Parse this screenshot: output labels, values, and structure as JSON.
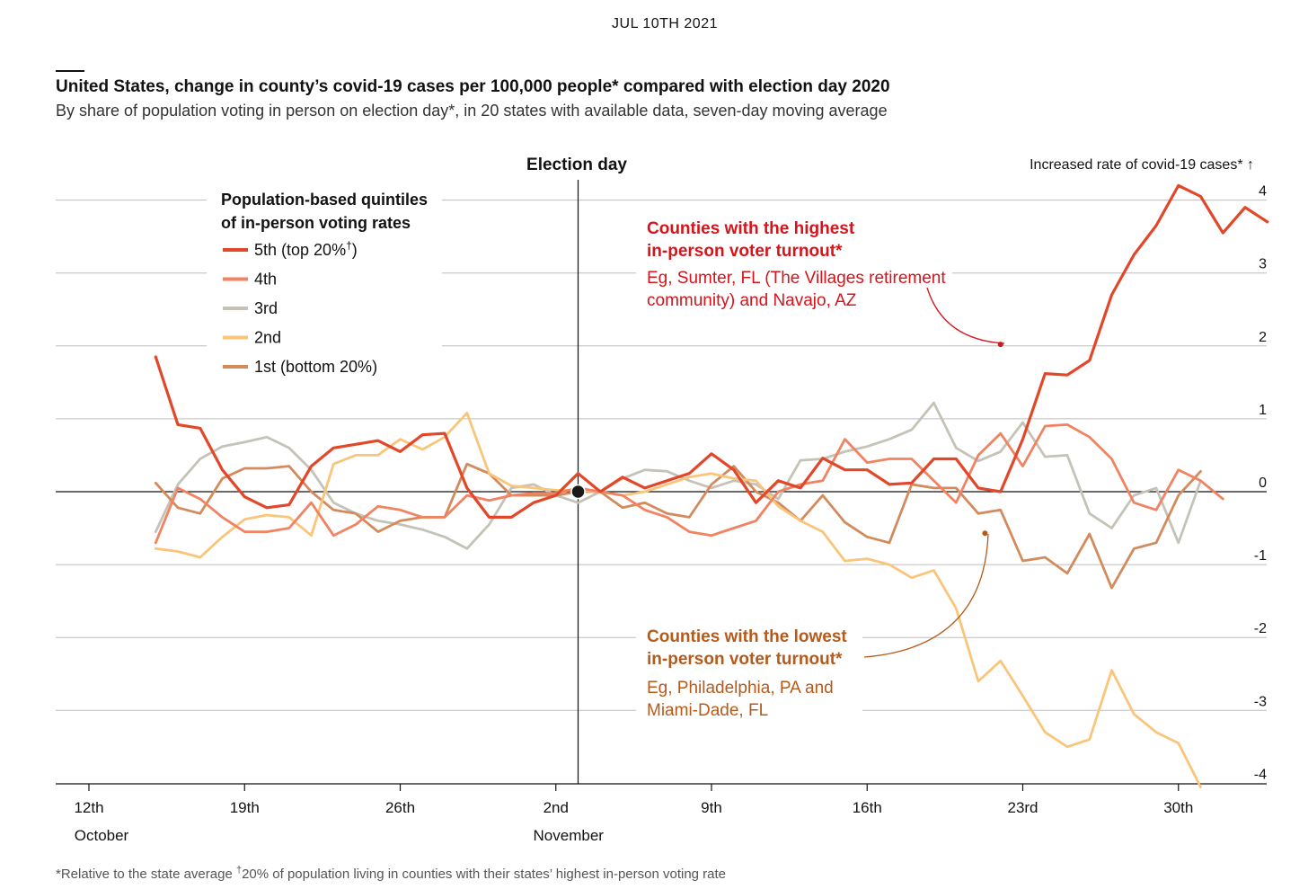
{
  "header": {
    "date": "JUL 10TH 2021",
    "title": "United States, change in county’s covid-19 cases per 100,000 people* compared with election day 2020",
    "subtitle": "By share of population voting in person on election day*, in 20 states with available data, seven-day moving average"
  },
  "footnote": {
    "part1": "*Relative to the state average ",
    "dagger": "†",
    "part2": "20% of population living in counties with their states’ highest in-person voting rate"
  },
  "chart_data": {
    "type": "line",
    "x_unit": "day offset relative to election day (Nov 3rd 2020)",
    "xlim": [
      -22.5,
      32
    ],
    "ylim": [
      -4,
      4.2
    ],
    "y_ticks": [
      4,
      3,
      2,
      1,
      0,
      -1,
      -2,
      -3,
      -4
    ],
    "y_tick_labels": [
      "4",
      "3",
      "2",
      "1",
      "0",
      "-1",
      "-2",
      "-3",
      "-4"
    ],
    "y_axis_label": "Increased rate of covid-19 cases* ↑",
    "x_ticks": [
      {
        "x": -22,
        "label": "12th",
        "sub": "October"
      },
      {
        "x": -15,
        "label": "19th",
        "sub": ""
      },
      {
        "x": -8,
        "label": "26th",
        "sub": ""
      },
      {
        "x": -1,
        "label": "2nd",
        "sub": "November"
      },
      {
        "x": 6,
        "label": "9th",
        "sub": ""
      },
      {
        "x": 13,
        "label": "16th",
        "sub": ""
      },
      {
        "x": 20,
        "label": "23rd",
        "sub": ""
      },
      {
        "x": 27,
        "label": "30th",
        "sub": ""
      }
    ],
    "election_day_label": "Election day",
    "legend": {
      "title_line1": "Population-based quintiles",
      "title_line2": "of in-person voting rates",
      "placement": "top-left"
    },
    "series": [
      {
        "name": "5th (top 20%",
        "name_suffix": "†",
        "name_close": ")",
        "color": "#e3472a",
        "stroke_width": 3.2,
        "x_start": -19,
        "values": [
          1.85,
          0.92,
          0.87,
          0.3,
          -0.07,
          -0.22,
          -0.18,
          0.35,
          0.6,
          0.65,
          0.7,
          0.55,
          0.78,
          0.8,
          0.05,
          -0.35,
          -0.35,
          -0.15,
          -0.05,
          0.25,
          0,
          0.2,
          0.05,
          0.15,
          0.25,
          0.52,
          0.3,
          -0.15,
          0.15,
          0.05,
          0.46,
          0.3,
          0.3,
          0.1,
          0.12,
          0.45,
          0.45,
          0.05,
          0,
          0.72,
          1.62,
          1.6,
          1.8,
          2.7,
          3.25,
          3.65,
          4.2,
          4.05,
          3.55,
          3.9,
          3.7
        ]
      },
      {
        "name": "4th",
        "color": "#f18262",
        "stroke_width": 2.8,
        "x_start": -19,
        "values": [
          -0.7,
          0.05,
          -0.1,
          -0.35,
          -0.55,
          -0.55,
          -0.5,
          -0.15,
          -0.6,
          -0.45,
          -0.2,
          -0.25,
          -0.35,
          -0.35,
          -0.05,
          -0.12,
          -0.05,
          -0.02,
          -0.02,
          0.05,
          0,
          -0.05,
          -0.25,
          -0.35,
          -0.55,
          -0.6,
          -0.5,
          -0.4,
          0,
          0.1,
          0.15,
          0.72,
          0.4,
          0.45,
          0.45,
          0.15,
          -0.15,
          0.5,
          0.8,
          0.35,
          0.9,
          0.92,
          0.75,
          0.45,
          -0.15,
          -0.25,
          0.3,
          0.15,
          -0.1
        ]
      },
      {
        "name": "3rd",
        "color": "#c5c2b7",
        "stroke_width": 2.8,
        "x_start": -19,
        "values": [
          -0.55,
          0.1,
          0.45,
          0.62,
          0.68,
          0.75,
          0.6,
          0.3,
          -0.15,
          -0.3,
          -0.4,
          -0.45,
          -0.52,
          -0.62,
          -0.78,
          -0.45,
          0.05,
          0.1,
          -0.05,
          -0.15,
          0,
          0.18,
          0.3,
          0.28,
          0.15,
          0.05,
          0.15,
          0.1,
          -0.1,
          0.43,
          0.45,
          0.55,
          0.62,
          0.72,
          0.85,
          1.22,
          0.6,
          0.42,
          0.55,
          0.95,
          0.48,
          0.5,
          -0.3,
          -0.5,
          -0.05,
          0.05,
          -0.7,
          0.15
        ]
      },
      {
        "name": "2nd",
        "color": "#f9c57a",
        "stroke_width": 2.8,
        "x_start": -19,
        "values": [
          -0.78,
          -0.82,
          -0.9,
          -0.62,
          -0.38,
          -0.32,
          -0.35,
          -0.6,
          0.38,
          0.5,
          0.5,
          0.72,
          0.58,
          0.75,
          1.08,
          0.25,
          0.08,
          0.05,
          0.02,
          0.02,
          0,
          -0.05,
          0,
          0.1,
          0.2,
          0.25,
          0.18,
          0.15,
          -0.2,
          -0.4,
          -0.55,
          -0.95,
          -0.92,
          -1.0,
          -1.18,
          -1.08,
          -1.6,
          -2.6,
          -2.32,
          -2.8,
          -3.3,
          -3.5,
          -3.4,
          -2.45,
          -3.05,
          -3.3,
          -3.45,
          -4.05
        ]
      },
      {
        "name": "1st (bottom 20%)",
        "color": "#d38b5d",
        "stroke_width": 2.8,
        "x_start": -19,
        "values": [
          0.12,
          -0.22,
          -0.3,
          0.18,
          0.32,
          0.32,
          0.35,
          0.0,
          -0.25,
          -0.3,
          -0.55,
          -0.4,
          -0.35,
          -0.35,
          0.38,
          0.25,
          -0.05,
          -0.05,
          -0.05,
          0,
          0,
          -0.22,
          -0.15,
          -0.3,
          -0.35,
          0.1,
          0.35,
          0.0,
          -0.15,
          -0.4,
          -0.05,
          -0.42,
          -0.62,
          -0.7,
          0.1,
          0.05,
          0.05,
          -0.3,
          -0.25,
          -0.95,
          -0.9,
          -1.12,
          -0.58,
          -1.32,
          -0.78,
          -0.7,
          -0.05,
          0.28
        ]
      }
    ],
    "annotations": {
      "high": {
        "line1": "Counties with the highest",
        "line2": "in-person voter turnout*",
        "line3": "Eg, Sumter, FL (The Villages retirement",
        "line4": "community) and Navajo, AZ",
        "color": "#d6141c",
        "target_x": 19,
        "target_y": 2.02
      },
      "low": {
        "line1": "Counties with the lowest",
        "line2": "in-person voter turnout*",
        "line3": "Eg, Philadelphia, PA and",
        "line4": "Miami-Dade, FL",
        "color": "#b65a1c",
        "target_x": 18.3,
        "target_y": -0.57
      }
    }
  }
}
